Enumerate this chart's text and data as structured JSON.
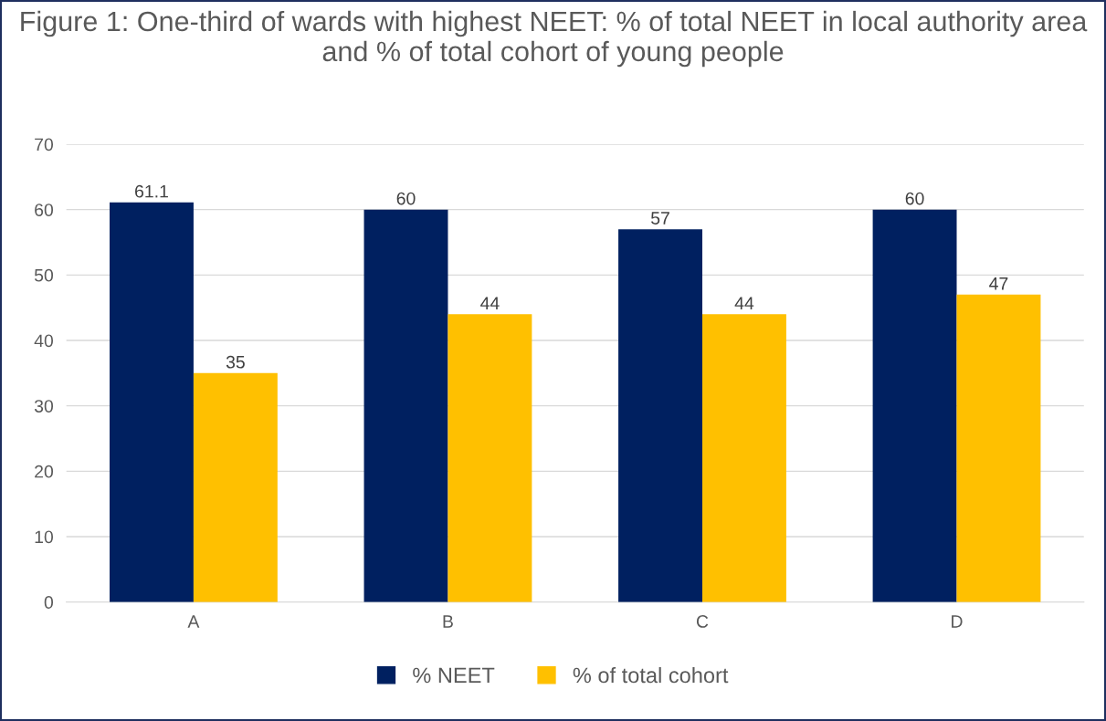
{
  "chart_data": {
    "type": "bar",
    "title": "Figure 1: One-third of wards with highest NEET: % of total NEET in local authority area and % of total cohort of young people",
    "categories": [
      "A",
      "B",
      "C",
      "D"
    ],
    "series": [
      {
        "name": "% NEET",
        "color": "#002060",
        "values": [
          61.1,
          60,
          57,
          60
        ]
      },
      {
        "name": "% of total cohort",
        "color": "#ffc000",
        "values": [
          35,
          44,
          44,
          47
        ]
      }
    ],
    "ylim": [
      0,
      70
    ],
    "yticks": [
      0,
      10,
      20,
      30,
      40,
      50,
      60,
      70
    ],
    "grid": "y",
    "legend": "bottom",
    "data_labels": true
  }
}
